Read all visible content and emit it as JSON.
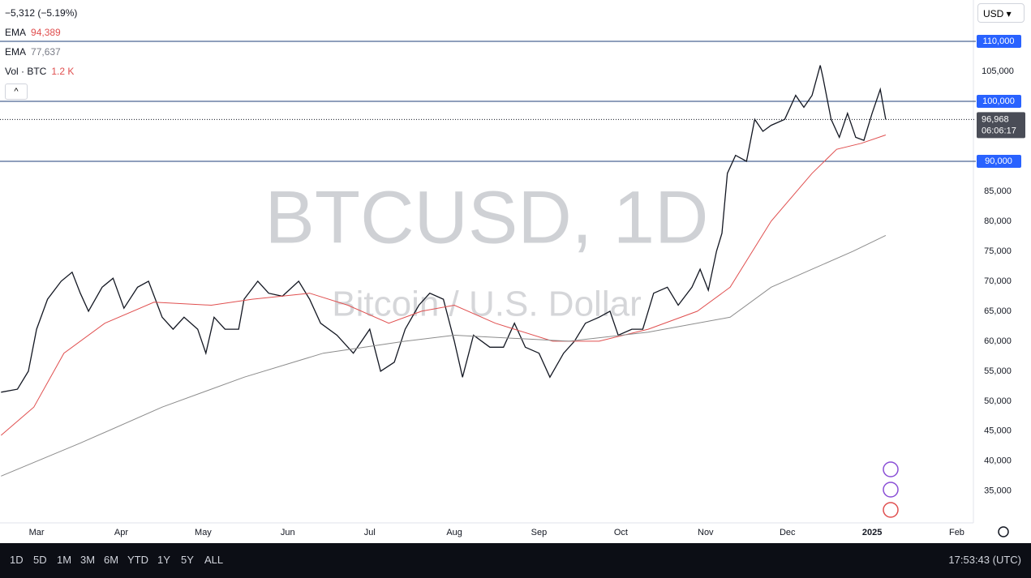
{
  "legend": {
    "change": "−5,312 (−5.19%)",
    "ema_fast_label": "EMA",
    "ema_fast_value": "94,389",
    "ema_slow_label": "EMA",
    "ema_slow_value": "77,637",
    "volume_label": "Vol · BTC",
    "volume_value": "1.2 K"
  },
  "currency": "USD",
  "toolbar": {
    "ranges": [
      "1D",
      "5D",
      "1M",
      "3M",
      "6M",
      "YTD",
      "1Y",
      "5Y",
      "ALL"
    ],
    "clock": "17:53:43 (UTC)"
  },
  "chart_data": {
    "type": "line",
    "watermark_symbol": "BTCUSD, 1D",
    "watermark_name": "Bitcoin / U.S. Dollar",
    "xlim": [
      -13.4,
      343.1
    ],
    "ylim": [
      29700,
      116900
    ],
    "xticks": [
      {
        "value": 0,
        "label": "Mar"
      },
      {
        "value": 31,
        "label": "Apr"
      },
      {
        "value": 61,
        "label": "May"
      },
      {
        "value": 92,
        "label": "Jun"
      },
      {
        "value": 122,
        "label": "Jul"
      },
      {
        "value": 153,
        "label": "Aug"
      },
      {
        "value": 184,
        "label": "Sep"
      },
      {
        "value": 214,
        "label": "Oct"
      },
      {
        "value": 245,
        "label": "Nov"
      },
      {
        "value": 275,
        "label": "Dec"
      },
      {
        "value": 306,
        "label": "2025"
      },
      {
        "value": 337,
        "label": "Feb"
      }
    ],
    "yticks": [
      {
        "value": 105000,
        "label": "105,000"
      },
      {
        "value": 85000,
        "label": "85,000"
      },
      {
        "value": 80000,
        "label": "80,000"
      },
      {
        "value": 75000,
        "label": "75,000"
      },
      {
        "value": 70000,
        "label": "70,000"
      },
      {
        "value": 65000,
        "label": "65,000"
      },
      {
        "value": 60000,
        "label": "60,000"
      },
      {
        "value": 55000,
        "label": "55,000"
      },
      {
        "value": 50000,
        "label": "50,000"
      },
      {
        "value": 45000,
        "label": "45,000"
      },
      {
        "value": 40000,
        "label": "40,000"
      },
      {
        "value": 35000,
        "label": "35,000"
      }
    ],
    "hlines": [
      {
        "value": 110000,
        "label": "110,000"
      },
      {
        "value": 100000,
        "label": "100,000"
      },
      {
        "value": 90000,
        "label": "90,000"
      }
    ],
    "last_price": {
      "value": 96968,
      "label": "96,968"
    },
    "countdown": "06:06:17",
    "series": [
      {
        "name": "BTCUSD",
        "color": "#131722",
        "x": [
          -13,
          -7,
          -3,
          0,
          4,
          9,
          13,
          16,
          19,
          24,
          28,
          32,
          37,
          41,
          46,
          50,
          54,
          59,
          62,
          65,
          69,
          74,
          76,
          81,
          85,
          90,
          96,
          100,
          104,
          110,
          116,
          122,
          126,
          131,
          135,
          140,
          144,
          149,
          153,
          156,
          160,
          166,
          171,
          175,
          179,
          184,
          188,
          193,
          197,
          201,
          206,
          210,
          213,
          218,
          222,
          226,
          231,
          235,
          240,
          243,
          246,
          249,
          251,
          253,
          256,
          260,
          263,
          266,
          269,
          274,
          278,
          281,
          284,
          287,
          288,
          291,
          294,
          297,
          300,
          303,
          306,
          309,
          311
        ],
        "values": [
          51500,
          52000,
          55000,
          62000,
          67000,
          70000,
          71500,
          68000,
          65000,
          69000,
          70500,
          65500,
          69000,
          70000,
          64000,
          62000,
          64000,
          62000,
          58000,
          64000,
          62000,
          62000,
          67000,
          70000,
          68000,
          67500,
          70000,
          67000,
          63000,
          61000,
          58000,
          62000,
          55000,
          56500,
          62000,
          66000,
          68000,
          67000,
          60000,
          54000,
          61000,
          59000,
          59000,
          63000,
          59000,
          58000,
          54000,
          58000,
          60000,
          63000,
          64000,
          65000,
          61000,
          62000,
          62000,
          68000,
          69000,
          66000,
          69000,
          72000,
          68500,
          75000,
          78000,
          88000,
          91000,
          90000,
          97000,
          95000,
          96000,
          97000,
          101000,
          99000,
          101000,
          106000,
          104000,
          97000,
          94000,
          98000,
          94000,
          93500,
          98000,
          102000,
          96968
        ]
      },
      {
        "name": "EMA",
        "color": "#e04f4f",
        "x": [
          -13,
          -1,
          10,
          25,
          43,
          64,
          79,
          100,
          114,
          129,
          141,
          153,
          168,
          189,
          206,
          224,
          242,
          254,
          269,
          284,
          293,
          302,
          311
        ],
        "values": [
          44300,
          49000,
          58000,
          63000,
          66500,
          66000,
          67000,
          68000,
          66000,
          63000,
          65000,
          66000,
          63000,
          60000,
          60000,
          62000,
          65000,
          69000,
          80000,
          88000,
          92000,
          93000,
          94389
        ]
      },
      {
        "name": "EMA",
        "color": "#8c8c8c",
        "x": [
          -13,
          16,
          46,
          76,
          105,
          135,
          153,
          195,
          224,
          254,
          269,
          284,
          299,
          311
        ],
        "values": [
          37500,
          43000,
          49000,
          54000,
          58000,
          60000,
          61000,
          60000,
          61500,
          64000,
          69000,
          72000,
          75000,
          77637
        ]
      }
    ]
  }
}
